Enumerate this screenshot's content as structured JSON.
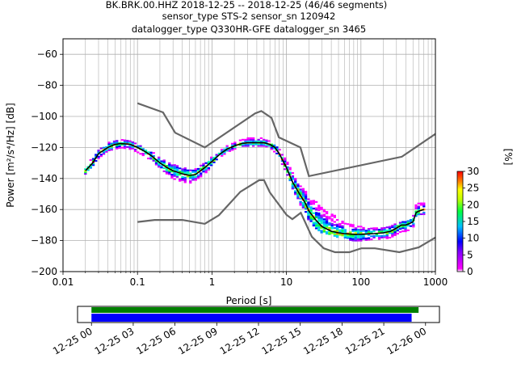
{
  "title": {
    "line1": "BK.BRK.00.HHZ   2018-12-25 -- 2018-12-25  (46/46 segments)",
    "line2": "sensor_type STS-2 sensor_sn 120942",
    "line3": "datalogger_type Q330HR-GFE datalogger_sn 3465"
  },
  "chart_data": [
    {
      "type": "heatmap",
      "xlabel": "Period [s]",
      "ylabel": "Power [m²/s⁴/Hz] [dB]",
      "xscale": "log",
      "xlim": [
        0.01,
        1000
      ],
      "ylim": [
        -200,
        -50
      ],
      "xticks": [
        {
          "value": 0.01,
          "label": "0.01"
        },
        {
          "value": 0.1,
          "label": "0.1"
        },
        {
          "value": 1,
          "label": "1"
        },
        {
          "value": 10,
          "label": "10"
        },
        {
          "value": 100,
          "label": "100"
        },
        {
          "value": 1000,
          "label": "1000"
        }
      ],
      "yticks": [
        {
          "value": -60,
          "label": "−60"
        },
        {
          "value": -80,
          "label": "−80"
        },
        {
          "value": -100,
          "label": "−100"
        },
        {
          "value": -120,
          "label": "−120"
        },
        {
          "value": -140,
          "label": "−140"
        },
        {
          "value": -160,
          "label": "−160"
        },
        {
          "value": -180,
          "label": "−180"
        },
        {
          "value": -200,
          "label": "−200"
        }
      ],
      "grid": true,
      "noise_models": {
        "high": {
          "x": [
            0.1,
            0.22,
            0.32,
            0.8,
            3.8,
            4.6,
            6.3,
            7.9,
            15.4,
            20,
            354,
            1000
          ],
          "y": [
            -91.5,
            -97.4,
            -110.5,
            -120,
            -98,
            -96.5,
            -101,
            -113.5,
            -120,
            -138.5,
            -126,
            -111.3
          ]
        },
        "low": {
          "x": [
            0.1,
            0.17,
            0.4,
            0.8,
            1.24,
            2.4,
            4.3,
            5,
            6,
            10,
            12,
            15.6,
            21.9,
            31.6,
            45,
            70,
            101,
            154,
            328,
            600,
            1000
          ],
          "y": [
            -168,
            -166.7,
            -166.7,
            -169.2,
            -163.7,
            -148.6,
            -141.1,
            -141.1,
            -149,
            -163.4,
            -166.2,
            -162.1,
            -177.5,
            -185,
            -187.5,
            -187.5,
            -185,
            -185,
            -187.5,
            -184.4,
            -178
          ]
        },
        "color": "#666666"
      },
      "median": {
        "x": [
          0.02,
          0.025,
          0.03,
          0.04,
          0.05,
          0.06,
          0.08,
          0.1,
          0.13,
          0.16,
          0.2,
          0.25,
          0.3,
          0.4,
          0.5,
          0.6,
          0.8,
          1.0,
          1.3,
          1.6,
          2.0,
          2.5,
          3.0,
          4.0,
          5.0,
          6.0,
          7.0,
          8.0,
          10,
          12,
          15,
          18,
          20,
          25,
          30,
          40,
          50,
          60,
          80,
          100,
          150,
          200,
          250,
          300,
          350,
          400,
          450,
          500,
          550,
          600,
          700
        ],
        "y": [
          -135,
          -130,
          -124,
          -120,
          -118,
          -117.5,
          -118,
          -120,
          -123,
          -126,
          -130,
          -133,
          -135,
          -137,
          -138,
          -137.5,
          -133,
          -129,
          -124,
          -121,
          -119,
          -117.5,
          -117,
          -117,
          -117,
          -118,
          -120,
          -124,
          -133,
          -142,
          -150,
          -156,
          -161,
          -167,
          -171,
          -174,
          -175,
          -175.5,
          -176,
          -176,
          -175.5,
          -175,
          -174,
          -172,
          -170,
          -170,
          -169,
          -168,
          -162,
          -161,
          -160
        ]
      },
      "scatter_band": {
        "x": [
          0.02,
          0.025,
          0.03,
          0.04,
          0.05,
          0.06,
          0.08,
          0.1,
          0.13,
          0.16,
          0.2,
          0.25,
          0.3,
          0.4,
          0.5,
          0.6,
          0.8,
          1.0,
          1.3,
          1.6,
          2.0,
          2.5,
          3.0,
          4.0,
          5.0,
          6.0,
          7.0,
          8.0,
          10,
          12,
          15,
          18,
          20,
          25,
          30,
          40,
          50,
          60,
          80,
          100,
          150,
          200,
          250,
          300,
          350,
          400,
          450,
          500,
          550,
          600,
          700
        ],
        "upper": [
          -132,
          -126,
          -121,
          -117,
          -115,
          -115,
          -116,
          -118,
          -121,
          -123,
          -126,
          -129,
          -131,
          -133,
          -134,
          -134,
          -130,
          -126,
          -122,
          -119,
          -117,
          -115,
          -114,
          -114,
          -114,
          -116,
          -118,
          -121,
          -128,
          -136,
          -144,
          -148,
          -152,
          -155,
          -158,
          -162,
          -166,
          -168,
          -170,
          -171,
          -172,
          -172,
          -171,
          -169,
          -168,
          -167,
          -167,
          -165,
          -157,
          -156,
          -156
        ],
        "lower": [
          -137,
          -133,
          -127,
          -122,
          -121,
          -120,
          -121,
          -123,
          -126,
          -129,
          -133,
          -137,
          -140,
          -142,
          -143,
          -141,
          -137,
          -132,
          -126,
          -123,
          -121,
          -119,
          -119,
          -119,
          -119,
          -120,
          -123,
          -127,
          -136,
          -146,
          -156,
          -162,
          -167,
          -172,
          -175,
          -176,
          -178,
          -179,
          -180,
          -180,
          -179,
          -179,
          -178,
          -176,
          -174,
          -174,
          -173,
          -172,
          -164,
          -163,
          -163
        ]
      },
      "colorbar": {
        "label": "[%]",
        "range": [
          0,
          30
        ],
        "ticks": [
          "0",
          "5",
          "10",
          "15",
          "20",
          "25",
          "30"
        ]
      }
    },
    {
      "type": "bar",
      "description_axis": "time",
      "xlim": [
        "2018-12-24 23:00",
        "2018-12-26 01:00"
      ],
      "xticks": [
        "12-25 00",
        "12-25 03",
        "12-25 06",
        "12-25 09",
        "12-25 12",
        "12-25 15",
        "12-25 18",
        "12-25 21",
        "12-26 00"
      ],
      "series": [
        {
          "color": "#008000",
          "start": "2018-12-25 00:00",
          "end": "2018-12-25 23:30"
        },
        {
          "color": "#0000ff",
          "start": "2018-12-25 00:00",
          "end": "2018-12-25 23:00"
        }
      ]
    }
  ],
  "colors": {
    "high_noise_model": "#666666",
    "low_noise_model": "#666666",
    "median": "#000000",
    "coverage_green": "#008000",
    "coverage_blue": "#0000ff"
  }
}
